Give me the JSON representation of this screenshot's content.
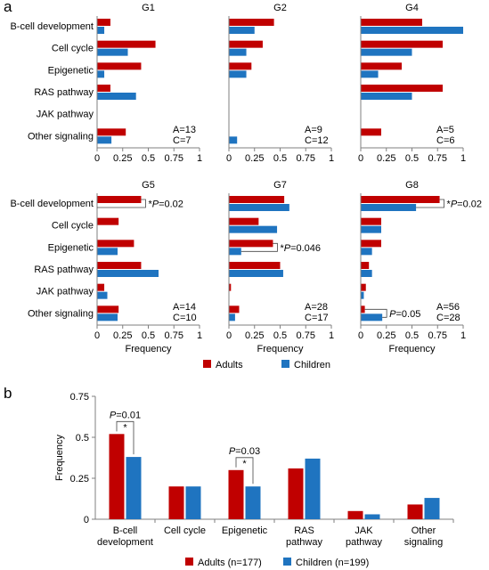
{
  "figure": {
    "panel_a_label": "a",
    "panel_b_label": "b",
    "colors": {
      "adults": "#c00000",
      "children": "#1f74c0",
      "axis": "#7f7f7f",
      "text": "#000000"
    }
  },
  "chart_data": [
    {
      "type": "bar",
      "orientation": "horizontal",
      "panel": "a",
      "title": "G1",
      "categories": [
        "B-cell development",
        "Cell cycle",
        "Epigenetic",
        "RAS pathway",
        "JAK pathway",
        "Other signaling"
      ],
      "series": [
        {
          "name": "Adults",
          "values": [
            0.13,
            0.57,
            0.43,
            0.13,
            0,
            0.28
          ]
        },
        {
          "name": "Children",
          "values": [
            0.07,
            0.3,
            0.07,
            0.38,
            0,
            0.14
          ]
        }
      ],
      "xlim": [
        0,
        1
      ],
      "xticks": [
        "0",
        "0.25",
        "0.5",
        "0.75",
        "1"
      ],
      "xlabel": "",
      "counts": [
        "A=13",
        "C=7"
      ],
      "annotations": []
    },
    {
      "type": "bar",
      "orientation": "horizontal",
      "panel": "a",
      "title": "G2",
      "categories": [
        "B-cell development",
        "Cell cycle",
        "Epigenetic",
        "RAS pathway",
        "JAK pathway",
        "Other signaling"
      ],
      "series": [
        {
          "name": "Adults",
          "values": [
            0.44,
            0.33,
            0.22,
            0,
            0,
            0
          ]
        },
        {
          "name": "Children",
          "values": [
            0.25,
            0.17,
            0.17,
            0,
            0,
            0.08
          ]
        }
      ],
      "xlim": [
        0,
        1
      ],
      "xticks": [
        "0",
        "0.25",
        "0.5",
        "0.75",
        "1"
      ],
      "xlabel": "",
      "counts": [
        "A=9",
        "C=12"
      ],
      "annotations": []
    },
    {
      "type": "bar",
      "orientation": "horizontal",
      "panel": "a",
      "title": "G4",
      "categories": [
        "B-cell development",
        "Cell cycle",
        "Epigenetic",
        "RAS pathway",
        "JAK pathway",
        "Other signaling"
      ],
      "series": [
        {
          "name": "Adults",
          "values": [
            0.6,
            0.8,
            0.4,
            0.8,
            0,
            0.2
          ]
        },
        {
          "name": "Children",
          "values": [
            1.0,
            0.5,
            0.17,
            0.5,
            0,
            0
          ]
        }
      ],
      "xlim": [
        0,
        1
      ],
      "xticks": [
        "0",
        "0.25",
        "0.5",
        "0.75",
        "1"
      ],
      "xlabel": "",
      "counts": [
        "A=5",
        "C=6"
      ],
      "annotations": []
    },
    {
      "type": "bar",
      "orientation": "horizontal",
      "panel": "a",
      "title": "G5",
      "categories": [
        "B-cell development",
        "Cell cycle",
        "Epigenetic",
        "RAS pathway",
        "JAK pathway",
        "Other signaling"
      ],
      "series": [
        {
          "name": "Adults",
          "values": [
            0.43,
            0.21,
            0.36,
            0.43,
            0.07,
            0.21
          ]
        },
        {
          "name": "Children",
          "values": [
            0,
            0,
            0.2,
            0.6,
            0.1,
            0.2
          ]
        }
      ],
      "xlim": [
        0,
        1
      ],
      "xticks": [
        "0",
        "0.25",
        "0.5",
        "0.75",
        "1"
      ],
      "xlabel": "Frequency",
      "counts": [
        "A=14",
        "C=10"
      ],
      "annotations": [
        {
          "category": "B-cell development",
          "star": "*",
          "p_label": "P",
          "p_value": "=0.02"
        }
      ]
    },
    {
      "type": "bar",
      "orientation": "horizontal",
      "panel": "a",
      "title": "G7",
      "categories": [
        "B-cell development",
        "Cell cycle",
        "Epigenetic",
        "RAS pathway",
        "JAK pathway",
        "Other signaling"
      ],
      "series": [
        {
          "name": "Adults",
          "values": [
            0.54,
            0.29,
            0.43,
            0.5,
            0.02,
            0.1
          ]
        },
        {
          "name": "Children",
          "values": [
            0.59,
            0.47,
            0.12,
            0.53,
            0,
            0.06
          ]
        }
      ],
      "xlim": [
        0,
        1
      ],
      "xticks": [
        "0",
        "0.25",
        "0.5",
        "0.75",
        "1"
      ],
      "xlabel": "Frequency",
      "counts": [
        "A=28",
        "C=17"
      ],
      "annotations": [
        {
          "category": "Epigenetic",
          "star": "*",
          "p_label": "P",
          "p_value": "=0.046"
        }
      ]
    },
    {
      "type": "bar",
      "orientation": "horizontal",
      "panel": "a",
      "title": "G8",
      "categories": [
        "B-cell development",
        "Cell cycle",
        "Epigenetic",
        "RAS pathway",
        "JAK pathway",
        "Other signaling"
      ],
      "series": [
        {
          "name": "Adults",
          "values": [
            0.77,
            0.2,
            0.2,
            0.08,
            0.05,
            0.04
          ]
        },
        {
          "name": "Children",
          "values": [
            0.54,
            0.2,
            0.11,
            0.11,
            0.03,
            0.21
          ]
        }
      ],
      "xlim": [
        0,
        1
      ],
      "xticks": [
        "0",
        "0.25",
        "0.5",
        "0.75",
        "1"
      ],
      "xlabel": "Frequency",
      "counts": [
        "A=56",
        "C=28"
      ],
      "annotations": [
        {
          "category": "B-cell development",
          "star": "*",
          "p_label": "P",
          "p_value": "=0.02"
        },
        {
          "category": "Other signaling",
          "star": "",
          "p_label": "P",
          "p_value": "=0.05"
        }
      ]
    },
    {
      "type": "bar",
      "orientation": "vertical",
      "panel": "b",
      "title": "",
      "categories": [
        [
          "B-cell",
          "development"
        ],
        [
          "Cell cycle"
        ],
        [
          "Epigenetic"
        ],
        [
          "RAS",
          "pathway"
        ],
        [
          "JAK",
          "pathway"
        ],
        [
          "Other",
          "signaling"
        ]
      ],
      "series": [
        {
          "name": "Adults (n=177)",
          "values": [
            0.52,
            0.2,
            0.3,
            0.31,
            0.05,
            0.09
          ]
        },
        {
          "name": "Children (n=199)",
          "values": [
            0.38,
            0.2,
            0.2,
            0.37,
            0.03,
            0.13
          ]
        }
      ],
      "ylim": [
        0,
        0.75
      ],
      "yticks": [
        "0",
        "0.25",
        "0.5",
        "0.75"
      ],
      "ylabel": "Frequency",
      "annotations": [
        {
          "category_index": 0,
          "p_label": "P",
          "p_value": "=0.01",
          "star": "*"
        },
        {
          "category_index": 2,
          "p_label": "P",
          "p_value": "=0.03",
          "star": "*"
        }
      ]
    }
  ],
  "legend_a": [
    {
      "label": "Adults",
      "color": "#c00000"
    },
    {
      "label": "Children",
      "color": "#1f74c0"
    }
  ],
  "legend_b": [
    {
      "label": "Adults (n=177)",
      "color": "#c00000"
    },
    {
      "label": "Children (n=199)",
      "color": "#1f74c0"
    }
  ]
}
